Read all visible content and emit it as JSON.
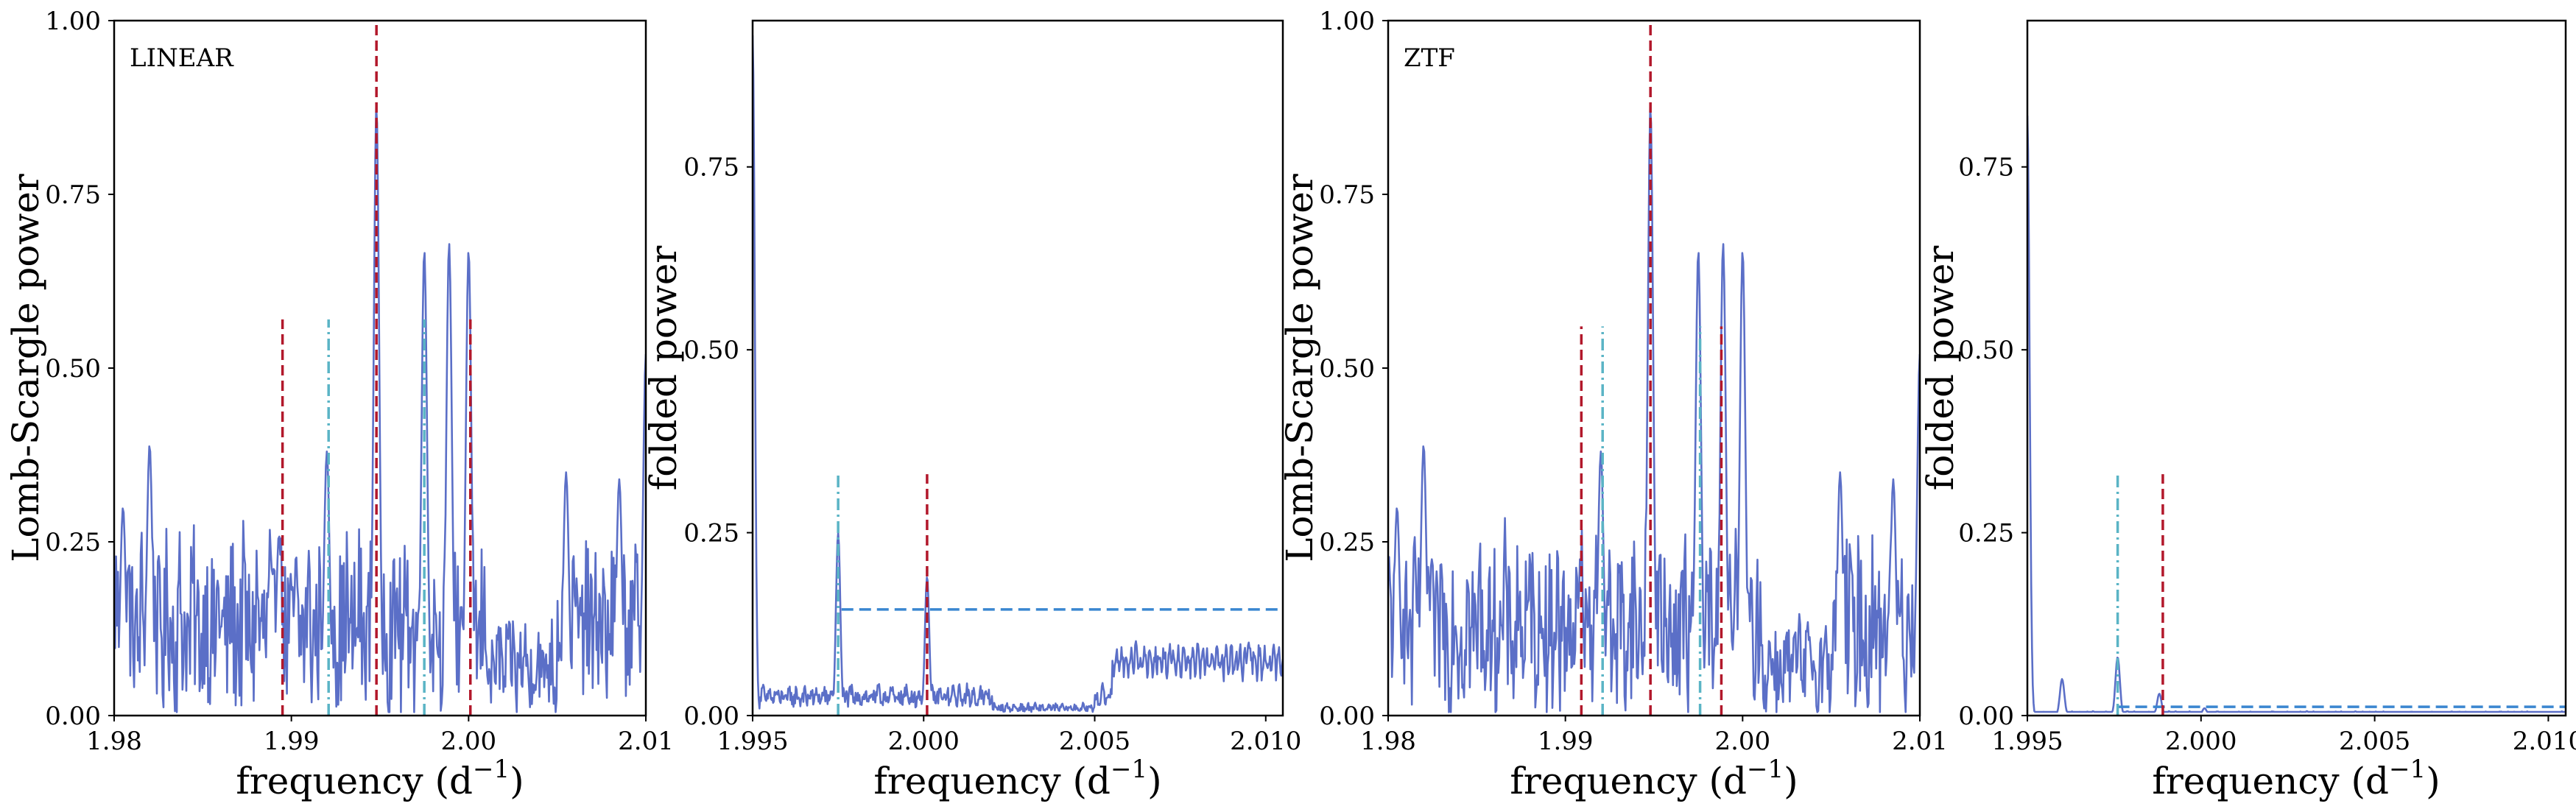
{
  "chart_data": [
    {
      "type": "line",
      "panel_label": "LINEAR",
      "xlabel": "frequency (d",
      "xlabel_sup": "−1",
      "xlabel_end": ")",
      "ylabel": "Lomb-Scargle power",
      "xlim": [
        1.98,
        2.01
      ],
      "ylim": [
        0,
        1.0
      ],
      "xticks": [
        1.98,
        1.99,
        2.0,
        2.01
      ],
      "xtick_labels": [
        "1.98",
        "1.99",
        "2.00",
        "2.01"
      ],
      "yticks": [
        0,
        0.25,
        0.5,
        0.75,
        1.0
      ],
      "ytick_labels": [
        "0.00",
        "0.25",
        "0.50",
        "0.75",
        "1.00"
      ],
      "series_color": "#5b6fc7",
      "peaks": [
        {
          "x": 1.9805,
          "y": 0.3
        },
        {
          "x": 1.982,
          "y": 0.39
        },
        {
          "x": 1.9893,
          "y": 0.26
        },
        {
          "x": 1.992,
          "y": 0.38
        },
        {
          "x": 1.9948,
          "y": 0.88
        },
        {
          "x": 1.9975,
          "y": 0.67
        },
        {
          "x": 1.9989,
          "y": 0.68
        },
        {
          "x": 2.0,
          "y": 0.67
        },
        {
          "x": 2.0055,
          "y": 0.35
        },
        {
          "x": 2.0085,
          "y": 0.34
        },
        {
          "x": 2.01,
          "y": 0.52
        }
      ],
      "reference_lines": [
        {
          "x": 1.9948,
          "ymax": 1.0,
          "style": "dashed",
          "color": "#b2182b"
        },
        {
          "x": 1.9895,
          "ymax": 0.57,
          "style": "dashed",
          "color": "#b2182b"
        },
        {
          "x": 2.0001,
          "ymax": 0.57,
          "style": "dashed",
          "color": "#b2182b"
        },
        {
          "x": 1.9921,
          "ymax": 0.57,
          "style": "dashdot",
          "color": "#5ab4c5"
        },
        {
          "x": 1.9975,
          "ymax": 0.57,
          "style": "dashdot",
          "color": "#5ab4c5"
        }
      ]
    },
    {
      "type": "line",
      "panel_label": "",
      "xlabel": "frequency (d",
      "xlabel_sup": "−1",
      "xlabel_end": ")",
      "ylabel": "folded power",
      "xlim": [
        1.995,
        2.0105
      ],
      "ylim": [
        0,
        0.95
      ],
      "xticks": [
        1.995,
        2.0,
        2.005,
        2.01
      ],
      "xtick_labels": [
        "1.995",
        "2.000",
        "2.005",
        "2.010"
      ],
      "yticks": [
        0,
        0.25,
        0.5,
        0.75
      ],
      "ytick_labels": [
        "0.00",
        "0.25",
        "0.50",
        "0.75"
      ],
      "series_color": "#5b6fc7",
      "peaks": [
        {
          "x": 1.995,
          "y": 0.93
        },
        {
          "x": 1.9975,
          "y": 0.25
        },
        {
          "x": 2.0001,
          "y": 0.19
        },
        {
          "x": 2.0095,
          "y": 0.1
        }
      ],
      "threshold": {
        "y": 0.145,
        "from": 1.9976,
        "color": "#3a86d0"
      },
      "reference_lines": [
        {
          "x": 2.0001,
          "ymax": 0.33,
          "style": "dashed",
          "color": "#b2182b"
        },
        {
          "x": 1.9975,
          "ymax": 0.33,
          "style": "dashdot",
          "color": "#5ab4c5"
        }
      ]
    },
    {
      "type": "line",
      "panel_label": "ZTF",
      "xlabel": "frequency (d",
      "xlabel_sup": "−1",
      "xlabel_end": ")",
      "ylabel": "Lomb-Scargle power",
      "xlim": [
        1.98,
        2.01
      ],
      "ylim": [
        0,
        1.0
      ],
      "xticks": [
        1.98,
        1.99,
        2.0,
        2.01
      ],
      "xtick_labels": [
        "1.98",
        "1.99",
        "2.00",
        "2.01"
      ],
      "yticks": [
        0,
        0.25,
        0.5,
        0.75,
        1.0
      ],
      "ytick_labels": [
        "0.00",
        "0.25",
        "0.50",
        "0.75",
        "1.00"
      ],
      "series_color": "#5b6fc7",
      "peaks": [
        {
          "x": 1.9805,
          "y": 0.3
        },
        {
          "x": 1.982,
          "y": 0.39
        },
        {
          "x": 1.9908,
          "y": 0.18
        },
        {
          "x": 1.992,
          "y": 0.38
        },
        {
          "x": 1.9948,
          "y": 0.88
        },
        {
          "x": 1.9975,
          "y": 0.67
        },
        {
          "x": 1.9989,
          "y": 0.68
        },
        {
          "x": 2.0,
          "y": 0.67
        },
        {
          "x": 2.0055,
          "y": 0.35
        },
        {
          "x": 2.0085,
          "y": 0.34
        },
        {
          "x": 2.01,
          "y": 0.52
        }
      ],
      "reference_lines": [
        {
          "x": 1.9948,
          "ymax": 1.0,
          "style": "dashed",
          "color": "#b2182b"
        },
        {
          "x": 1.9909,
          "ymax": 0.56,
          "style": "dashed",
          "color": "#b2182b"
        },
        {
          "x": 1.9988,
          "ymax": 0.56,
          "style": "dashed",
          "color": "#b2182b"
        },
        {
          "x": 1.9921,
          "ymax": 0.56,
          "style": "dashdot",
          "color": "#5ab4c5"
        },
        {
          "x": 1.9976,
          "ymax": 0.56,
          "style": "dashdot",
          "color": "#5ab4c5"
        }
      ]
    },
    {
      "type": "line",
      "panel_label": "",
      "xlabel": "frequency (d",
      "xlabel_sup": "−1",
      "xlabel_end": ")",
      "ylabel": "folded power",
      "xlim": [
        1.995,
        2.0105
      ],
      "ylim": [
        0,
        0.95
      ],
      "xticks": [
        1.995,
        2.0,
        2.005,
        2.01
      ],
      "xtick_labels": [
        "1.995",
        "2.000",
        "2.005",
        "2.010"
      ],
      "yticks": [
        0,
        0.25,
        0.5,
        0.75
      ],
      "ytick_labels": [
        "0.00",
        "0.25",
        "0.50",
        "0.75"
      ],
      "series_color": "#5b6fc7",
      "peaks": [
        {
          "x": 1.995,
          "y": 0.82
        },
        {
          "x": 1.996,
          "y": 0.05
        },
        {
          "x": 1.9976,
          "y": 0.08
        },
        {
          "x": 1.9988,
          "y": 0.03
        },
        {
          "x": 2.0001,
          "y": 0.01
        }
      ],
      "threshold": {
        "y": 0.012,
        "from": 1.9976,
        "color": "#3a86d0"
      },
      "reference_lines": [
        {
          "x": 1.9989,
          "ymax": 0.33,
          "style": "dashed",
          "color": "#b2182b"
        },
        {
          "x": 1.9976,
          "ymax": 0.33,
          "style": "dashdot",
          "color": "#5ab4c5"
        }
      ]
    }
  ]
}
